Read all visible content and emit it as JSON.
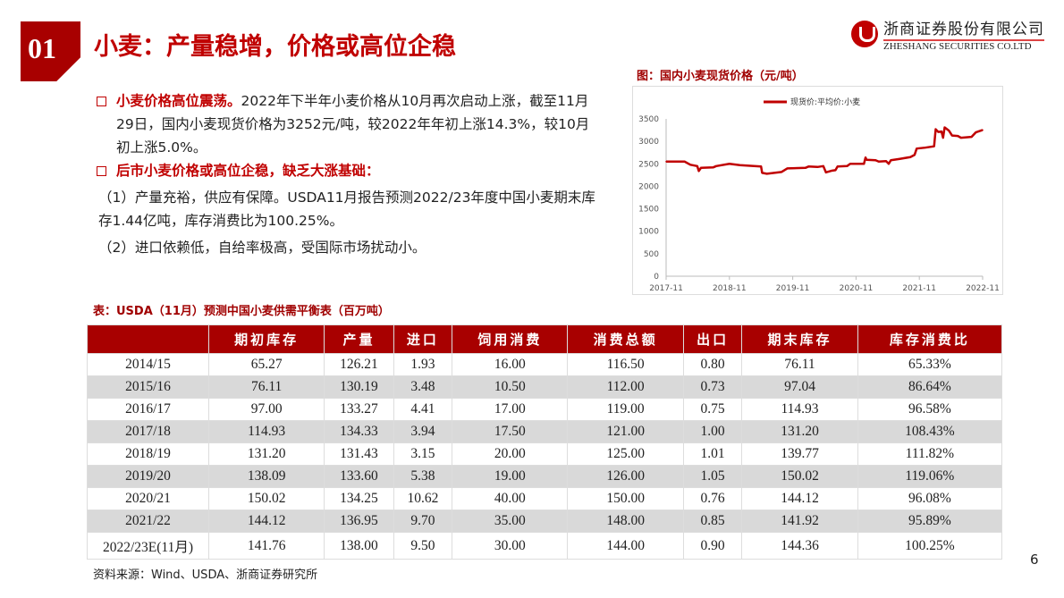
{
  "header": {
    "badge": "01",
    "title": "小麦：产量稳增，价格或高位企稳",
    "logo_cn": "浙商证券股份有限公司",
    "logo_en": "ZHESHANG SECURITIES CO.LTD"
  },
  "bullets": [
    {
      "head": "小麦价格高位震荡。",
      "text": "2022年下半年小麦价格从10月再次启动上涨，截至11月29日，国内小麦现货价格为3252元/吨，较2022年年初上涨14.3%，较10月初上涨5.0%。"
    },
    {
      "head": "后市小麦价格或高位企稳，缺乏大涨基础：",
      "text": ""
    }
  ],
  "paras": [
    "（1）产量充裕，供应有保障。USDA11月报告预测2022/23年度中国小麦期末库存1.44亿吨，库存消费比为100.25%。",
    "（2）进口依赖低，自给率极高，受国际市场扰动小。"
  ],
  "chart_title": "图：国内小麦现货价格（元/吨）",
  "chart_data": {
    "type": "line",
    "title": "图：国内小麦现货价格（元/吨）",
    "legend": "现货价:平均价:小麦",
    "legend_position": "top",
    "xlabel": "",
    "ylabel": "",
    "ylim": [
      0,
      3500
    ],
    "yticks": [
      0,
      500,
      1000,
      1500,
      2000,
      2500,
      3000,
      3500
    ],
    "xticks": [
      "2017-11",
      "2018-11",
      "2019-11",
      "2020-11",
      "2021-11",
      "2022-11"
    ],
    "x_unit": "months since 2017-11",
    "xlim": [
      0,
      60
    ],
    "color": "#c00000",
    "x": [
      0,
      3.5,
      4.6,
      5.9,
      6.2,
      6.6,
      8.9,
      9.5,
      12,
      14,
      18,
      18.2,
      19.1,
      21.9,
      23,
      26.4,
      27,
      28.7,
      29.8,
      30.3,
      31.5,
      32.1,
      32.5,
      34.3,
      34.9,
      37.5,
      37.8,
      38,
      39.7,
      40.3,
      41.7,
      42.2,
      42.6,
      44.3,
      46.3,
      47.1,
      47.5,
      49.1,
      50.8,
      51.1,
      51.6,
      52.2,
      52.5,
      52.8,
      53.6,
      54.2,
      55.3,
      55.9,
      57.9,
      58.7,
      60
    ],
    "values": [
      2550,
      2550,
      2480,
      2450,
      2340,
      2410,
      2420,
      2450,
      2500,
      2470,
      2440,
      2300,
      2280,
      2320,
      2400,
      2410,
      2440,
      2430,
      2450,
      2310,
      2350,
      2360,
      2440,
      2450,
      2500,
      2500,
      2640,
      2590,
      2580,
      2550,
      2560,
      2500,
      2580,
      2610,
      2650,
      2700,
      2840,
      2860,
      2890,
      3270,
      3210,
      3220,
      3080,
      3310,
      3240,
      3130,
      3120,
      3080,
      3100,
      3200,
      3252
    ]
  },
  "table_title": "表：USDA（11月）预测中国小麦供需平衡表（百万吨）",
  "table": {
    "headers": [
      "",
      "期初库存",
      "产量",
      "进口",
      "饲用消费",
      "消费总额",
      "出口",
      "期末库存",
      "库存消费比"
    ],
    "rows": [
      [
        "2014/15",
        "65.27",
        "126.21",
        "1.93",
        "16.00",
        "116.50",
        "0.80",
        "76.11",
        "65.33%"
      ],
      [
        "2015/16",
        "76.11",
        "130.19",
        "3.48",
        "10.50",
        "112.00",
        "0.73",
        "97.04",
        "86.64%"
      ],
      [
        "2016/17",
        "97.00",
        "133.27",
        "4.41",
        "17.00",
        "119.00",
        "0.75",
        "114.93",
        "96.58%"
      ],
      [
        "2017/18",
        "114.93",
        "134.33",
        "3.94",
        "17.50",
        "121.00",
        "1.00",
        "131.20",
        "108.43%"
      ],
      [
        "2018/19",
        "131.20",
        "131.43",
        "3.15",
        "20.00",
        "125.00",
        "1.01",
        "139.77",
        "111.82%"
      ],
      [
        "2019/20",
        "138.09",
        "133.60",
        "5.38",
        "19.00",
        "126.00",
        "1.05",
        "150.02",
        "119.06%"
      ],
      [
        "2020/21",
        "150.02",
        "134.25",
        "10.62",
        "40.00",
        "150.00",
        "0.76",
        "144.12",
        "96.08%"
      ],
      [
        "2021/22",
        "144.12",
        "136.95",
        "9.70",
        "35.00",
        "148.00",
        "0.85",
        "141.92",
        "95.89%"
      ],
      [
        "2022/23E(11月)",
        "141.76",
        "138.00",
        "9.50",
        "30.00",
        "144.00",
        "0.90",
        "144.36",
        "100.25%"
      ]
    ]
  },
  "source": "资料来源：Wind、USDA、浙商证券研究所",
  "page_number": "6"
}
